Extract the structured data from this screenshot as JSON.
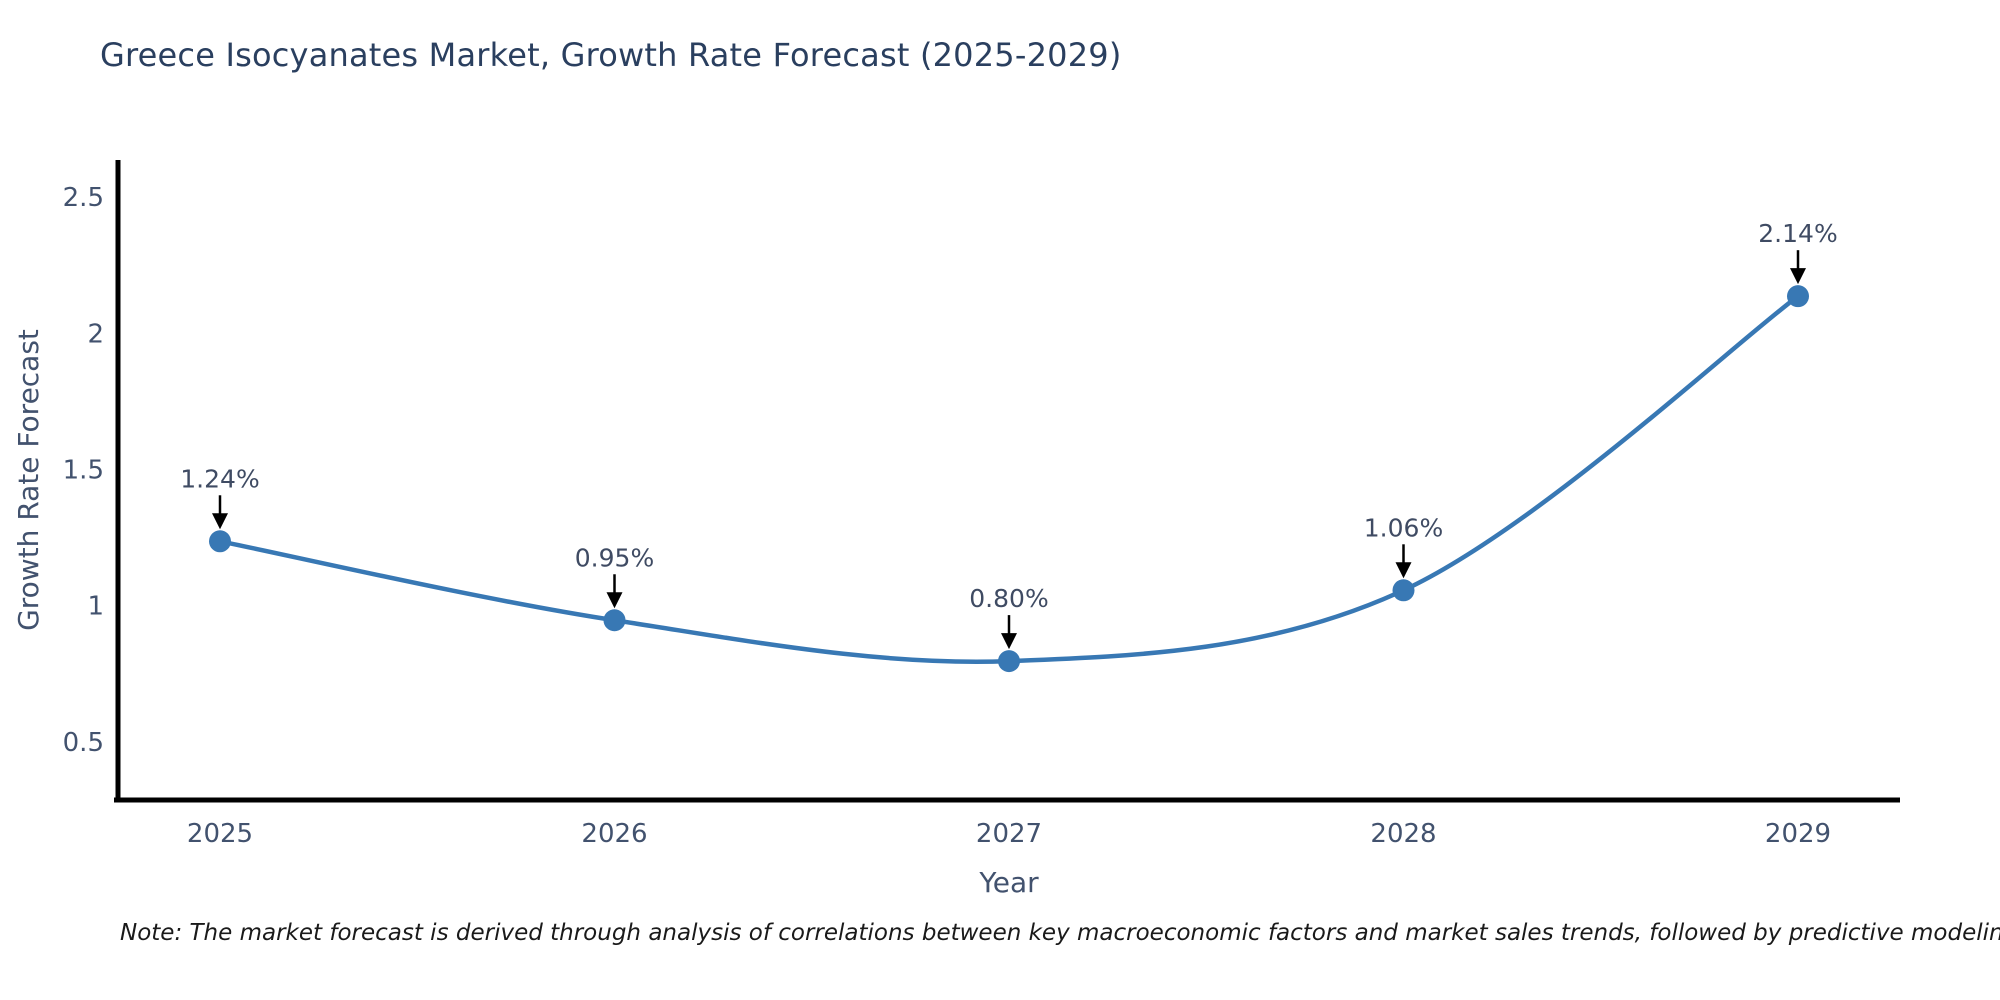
{
  "page": {
    "background": "#ffffff"
  },
  "chart_data": {
    "type": "line",
    "title": "Greece Isocyanates Market, Growth Rate Forecast (2025-2029)",
    "xlabel": "Year",
    "ylabel": "Growth Rate Forecast",
    "categories": [
      "2025",
      "2026",
      "2027",
      "2028",
      "2029"
    ],
    "series": [
      {
        "name": "Growth Rate Forecast",
        "values": [
          1.24,
          0.95,
          0.8,
          1.06,
          2.14
        ],
        "point_labels": [
          "1.24%",
          "0.95%",
          "0.80%",
          "1.06%",
          "2.14%"
        ]
      }
    ],
    "curve": "spline",
    "markers": true,
    "annotations_arrows": true,
    "yticks": [
      0.5,
      1,
      1.5,
      2,
      2.5
    ],
    "ytick_labels": [
      "0.5",
      "1",
      "1.5",
      "2",
      "2.5"
    ],
    "ylim": [
      0.29,
      2.64
    ],
    "grid": false,
    "legend_position": "none",
    "colors": {
      "line": "#3878b4",
      "marker": "#3878b4",
      "axis_line": "#000000",
      "title": "#2a3f5f",
      "tick_label": "#42526e",
      "axis_title": "#42526e",
      "annotation_text": "#3f4b63",
      "arrow": "#000000"
    }
  },
  "note": {
    "text": "Note: The market forecast is derived through analysis of correlations between key macroeconomic factors and market sales trends, followed by predictive modeling to project future sales"
  }
}
